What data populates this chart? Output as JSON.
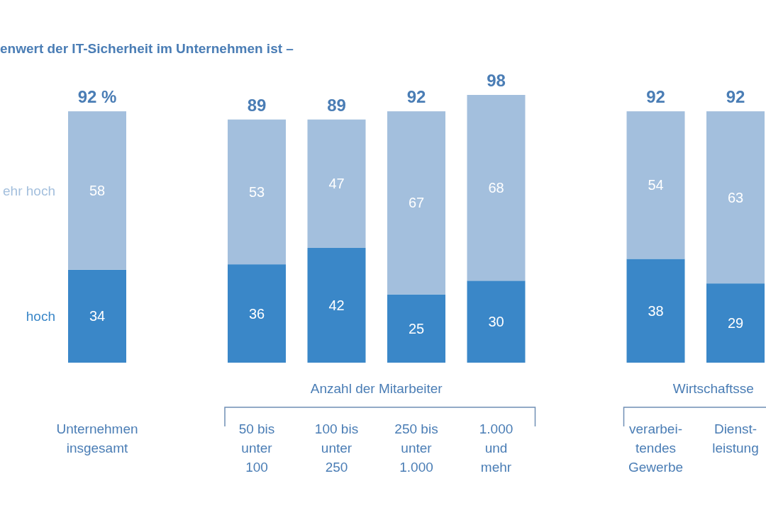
{
  "chart_data": {
    "type": "bar",
    "stacked": true,
    "data_labels": true,
    "legend": "left",
    "title": "enwert der IT-Sicherheit im Unternehmen ist –",
    "categories": [
      "Unternehmen\ninsgesamt",
      "50 bis\nunter\n100",
      "100 bis\nunter\n250",
      "250 bis\nunter\n1.000",
      "1.000\nund\nmehr",
      "verarbei-\ntendes\nGewerbe",
      "Dienst-\nleistung"
    ],
    "series": [
      {
        "name": "hoch",
        "color": "#3a87c8",
        "values": [
          34,
          36,
          42,
          25,
          30,
          38,
          29
        ]
      },
      {
        "name": "ehr hoch",
        "color": "#a3bfdd",
        "values": [
          58,
          53,
          47,
          67,
          68,
          54,
          63
        ]
      }
    ],
    "totals": [
      "92 %",
      "89",
      "89",
      "92",
      "98",
      "92",
      "92"
    ],
    "annotations": [
      "Anzahl der Mitarbeiter",
      "Wirtschaftsse"
    ]
  }
}
